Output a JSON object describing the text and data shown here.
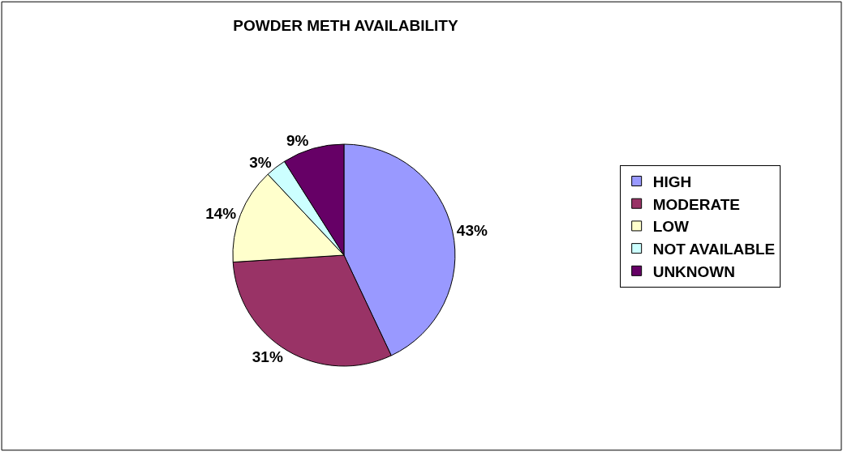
{
  "chart_data": {
    "type": "pie",
    "title": "POWDER METH AVAILABILITY",
    "categories": [
      "HIGH",
      "MODERATE",
      "LOW",
      "NOT AVAILABLE",
      "UNKNOWN"
    ],
    "values": [
      43,
      31,
      14,
      3,
      9
    ],
    "value_labels": [
      "43%",
      "31%",
      "14%",
      "3%",
      "9%"
    ],
    "colors": [
      "#9999ff",
      "#993366",
      "#ffffcc",
      "#ccffff",
      "#660066"
    ],
    "legend": "right"
  }
}
